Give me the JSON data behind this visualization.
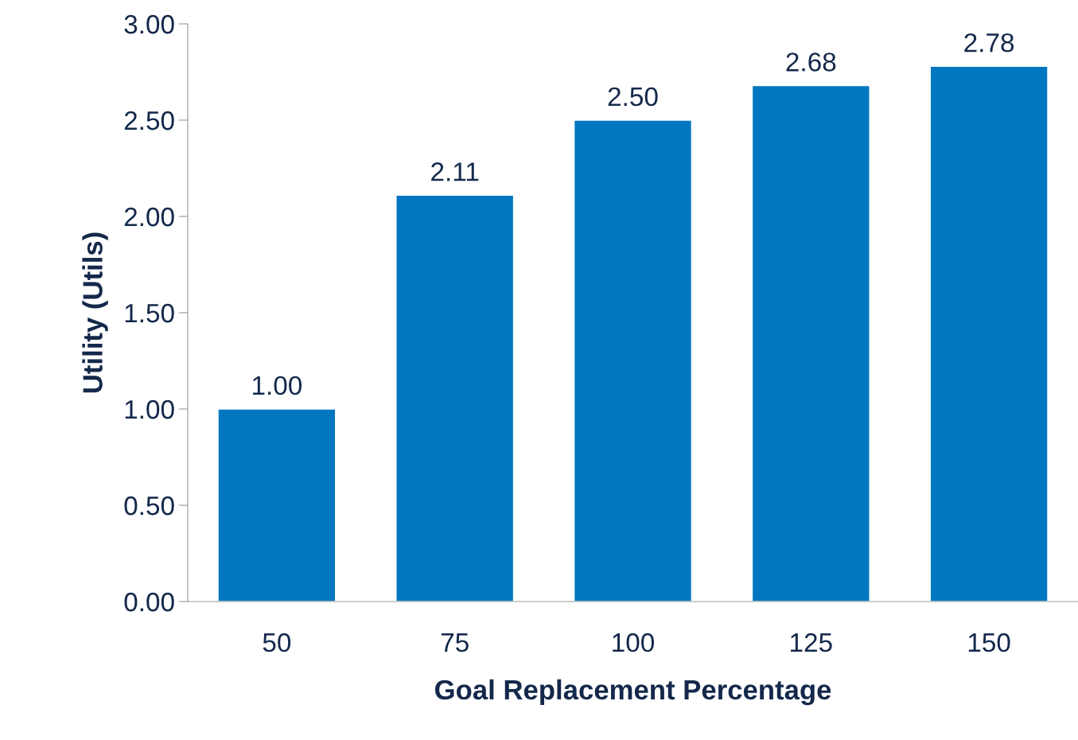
{
  "chart_data": {
    "type": "bar",
    "xlabel": "Goal Replacement Percentage",
    "ylabel": "Utility (Utils)",
    "categories": [
      "50",
      "75",
      "100",
      "125",
      "150"
    ],
    "values": [
      1.0,
      2.11,
      2.5,
      2.68,
      2.78
    ],
    "value_labels": [
      "1.00",
      "2.11",
      "2.50",
      "2.68",
      "2.78"
    ],
    "color": "#0077c0",
    "ylim": [
      0,
      3
    ],
    "yticks": [
      {
        "value": 0,
        "label": "0.00"
      },
      {
        "value": 0.5,
        "label": "0.50"
      },
      {
        "value": 1,
        "label": "1.00"
      },
      {
        "value": 1.5,
        "label": "1.50"
      },
      {
        "value": 2,
        "label": "2.00"
      },
      {
        "value": 2.5,
        "label": "2.50"
      },
      {
        "value": 3,
        "label": "3.00"
      }
    ],
    "grid": false
  }
}
